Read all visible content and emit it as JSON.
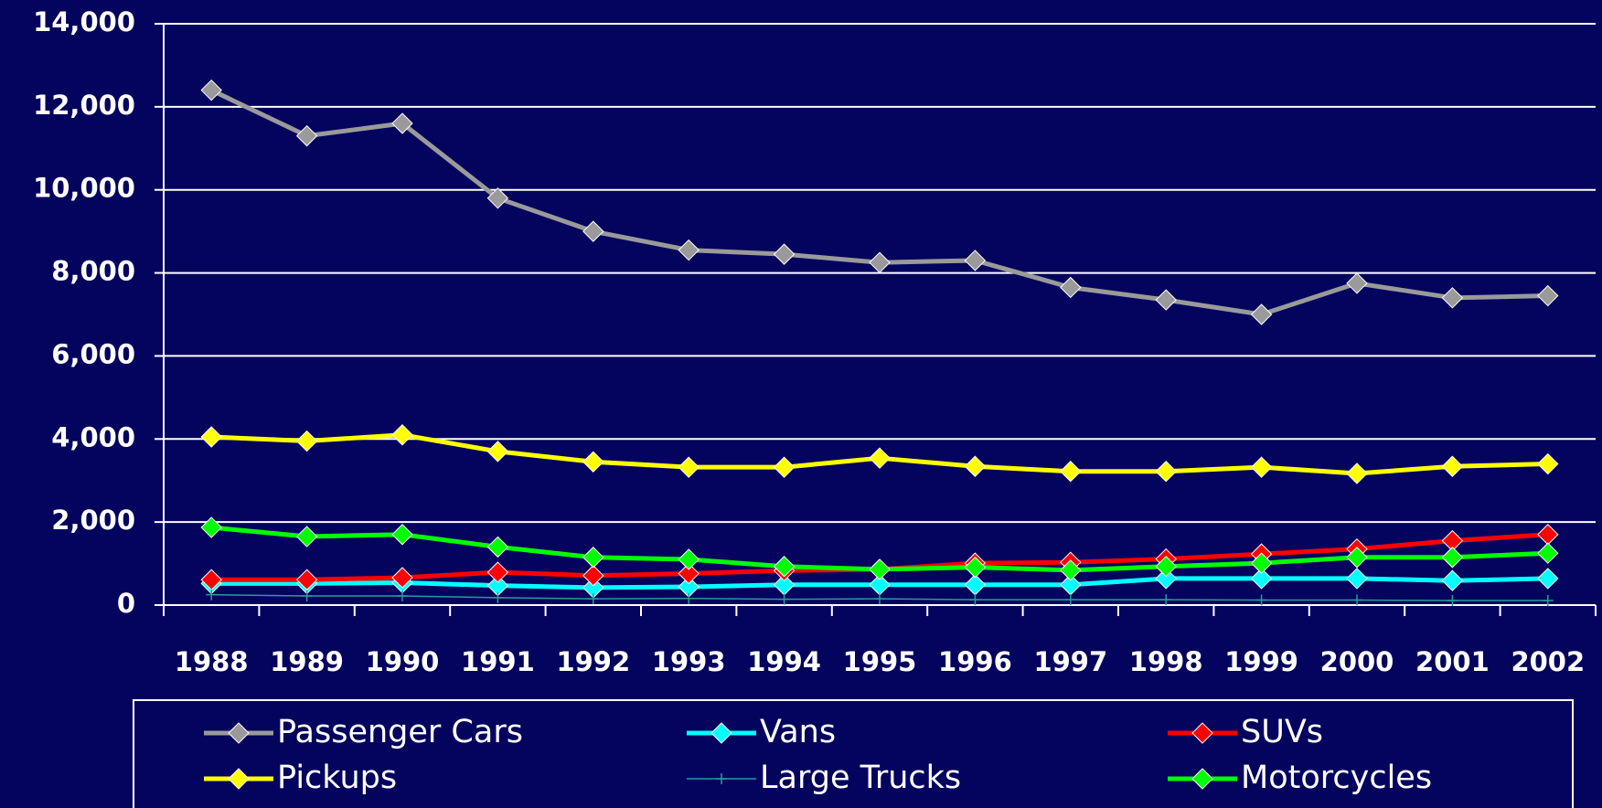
{
  "chart_data": {
    "type": "line",
    "categories": [
      "1988",
      "1989",
      "1990",
      "1991",
      "1992",
      "1993",
      "1994",
      "1995",
      "1996",
      "1997",
      "1998",
      "1999",
      "2000",
      "2001",
      "2002"
    ],
    "series": [
      {
        "name": "Passenger Cars",
        "color": "#9a9a9a",
        "marker": "diamond",
        "values": [
          12400,
          11300,
          11600,
          9800,
          9000,
          8550,
          8450,
          8250,
          8300,
          7650,
          7350,
          7000,
          7750,
          7400,
          7450
        ]
      },
      {
        "name": "Vans",
        "color": "#00ffff",
        "marker": "diamond",
        "values": [
          520,
          520,
          540,
          470,
          420,
          440,
          490,
          490,
          490,
          490,
          640,
          640,
          640,
          590,
          640
        ]
      },
      {
        "name": "SUVs",
        "color": "#ff0000",
        "marker": "diamond",
        "values": [
          610,
          610,
          660,
          790,
          710,
          760,
          830,
          860,
          1010,
          1030,
          1110,
          1230,
          1350,
          1550,
          1700
        ]
      },
      {
        "name": "Pickups",
        "color": "#ffff00",
        "marker": "diamond",
        "values": [
          4050,
          3950,
          4100,
          3700,
          3450,
          3320,
          3320,
          3540,
          3340,
          3220,
          3220,
          3320,
          3170,
          3340,
          3400
        ]
      },
      {
        "name": "Large Trucks",
        "color": "#2a9a9a",
        "marker": "plus",
        "values": [
          250,
          220,
          220,
          180,
          150,
          160,
          140,
          150,
          130,
          130,
          130,
          120,
          120,
          110,
          110
        ]
      },
      {
        "name": "Motorcycles",
        "color": "#00ff00",
        "marker": "diamond",
        "values": [
          1870,
          1650,
          1700,
          1400,
          1150,
          1100,
          930,
          860,
          910,
          840,
          930,
          1010,
          1150,
          1150,
          1250
        ]
      }
    ],
    "ylim": [
      0,
      14000
    ],
    "yticks": [
      0,
      {
        "value": 2000,
        "label": "2,000"
      },
      {
        "value": 4000,
        "label": "4,000"
      },
      {
        "value": 6000,
        "label": "6,000"
      },
      {
        "value": 8000,
        "label": "8,000"
      },
      {
        "value": 10000,
        "label": "10,000"
      },
      {
        "value": 12000,
        "label": "12,000"
      },
      {
        "value": 14000,
        "label": "14,000"
      }
    ],
    "grid": true,
    "legend": "bottom"
  }
}
